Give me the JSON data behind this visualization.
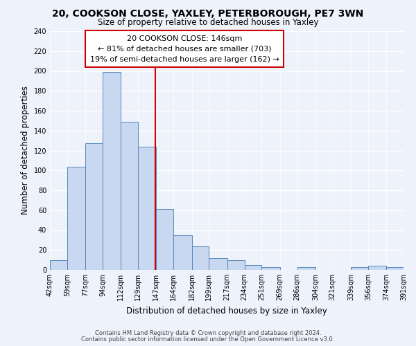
{
  "title": "20, COOKSON CLOSE, YAXLEY, PETERBOROUGH, PE7 3WN",
  "subtitle": "Size of property relative to detached houses in Yaxley",
  "xlabel": "Distribution of detached houses by size in Yaxley",
  "ylabel": "Number of detached properties",
  "bin_labels": [
    "42sqm",
    "59sqm",
    "77sqm",
    "94sqm",
    "112sqm",
    "129sqm",
    "147sqm",
    "164sqm",
    "182sqm",
    "199sqm",
    "217sqm",
    "234sqm",
    "251sqm",
    "269sqm",
    "286sqm",
    "304sqm",
    "321sqm",
    "339sqm",
    "356sqm",
    "374sqm",
    "391sqm"
  ],
  "bin_edges": [
    42,
    59,
    77,
    94,
    112,
    129,
    147,
    164,
    182,
    199,
    217,
    234,
    251,
    269,
    286,
    304,
    321,
    339,
    356,
    374,
    391
  ],
  "bar_heights": [
    10,
    104,
    127,
    199,
    149,
    124,
    61,
    35,
    24,
    12,
    10,
    5,
    3,
    0,
    3,
    0,
    0,
    3,
    4,
    3
  ],
  "bar_color": "#c8d8f0",
  "bar_edge_color": "#5588bb",
  "property_value": 146,
  "vline_color": "#cc0000",
  "annotation_title": "20 COOKSON CLOSE: 146sqm",
  "annotation_line1": "← 81% of detached houses are smaller (703)",
  "annotation_line2": "19% of semi-detached houses are larger (162) →",
  "annotation_box_color": "#ffffff",
  "annotation_box_edge": "#cc0000",
  "ylim": [
    0,
    240
  ],
  "yticks": [
    0,
    20,
    40,
    60,
    80,
    100,
    120,
    140,
    160,
    180,
    200,
    220,
    240
  ],
  "footer1": "Contains HM Land Registry data © Crown copyright and database right 2024.",
  "footer2": "Contains public sector information licensed under the Open Government Licence v3.0.",
  "bg_color": "#eef2fb"
}
